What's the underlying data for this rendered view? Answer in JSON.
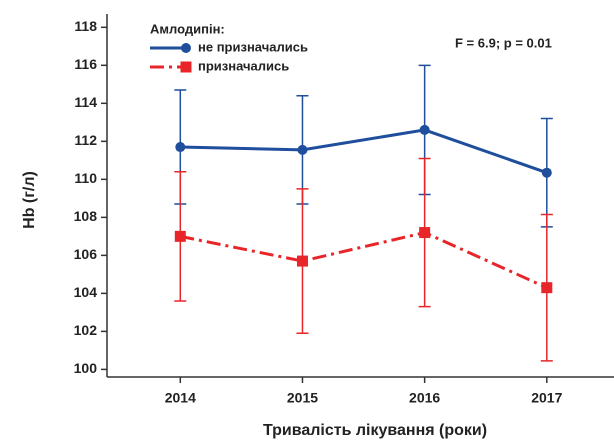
{
  "chart_data": {
    "type": "line",
    "legend_title": "Амлодипін:",
    "annotation": "F = 6.9; p = 0.01",
    "xlabel": "Тривалість лікування (роки)",
    "ylabel": "Hb (г/л)",
    "x": [
      2014,
      2015,
      2016,
      2017
    ],
    "xlim": [
      2013.4,
      2017.55
    ],
    "xticks": [
      2014,
      2015,
      2016,
      2017
    ],
    "ylim": [
      99.6,
      118.7
    ],
    "yticks": [
      100,
      102,
      104,
      106,
      108,
      110,
      112,
      114,
      116,
      118
    ],
    "series": [
      {
        "name": "не призначались",
        "color": "#1f4e9c",
        "dash": "solid",
        "marker": "circle",
        "values": [
          111.7,
          111.55,
          112.6,
          110.35
        ],
        "errors": [
          3.0,
          2.85,
          3.4,
          2.85
        ]
      },
      {
        "name": "призначались",
        "color": "#e8262a",
        "dash": "dashdot",
        "marker": "square",
        "values": [
          107.0,
          105.7,
          107.2,
          104.3
        ],
        "errors": [
          3.4,
          3.8,
          3.9,
          3.85
        ]
      }
    ]
  }
}
